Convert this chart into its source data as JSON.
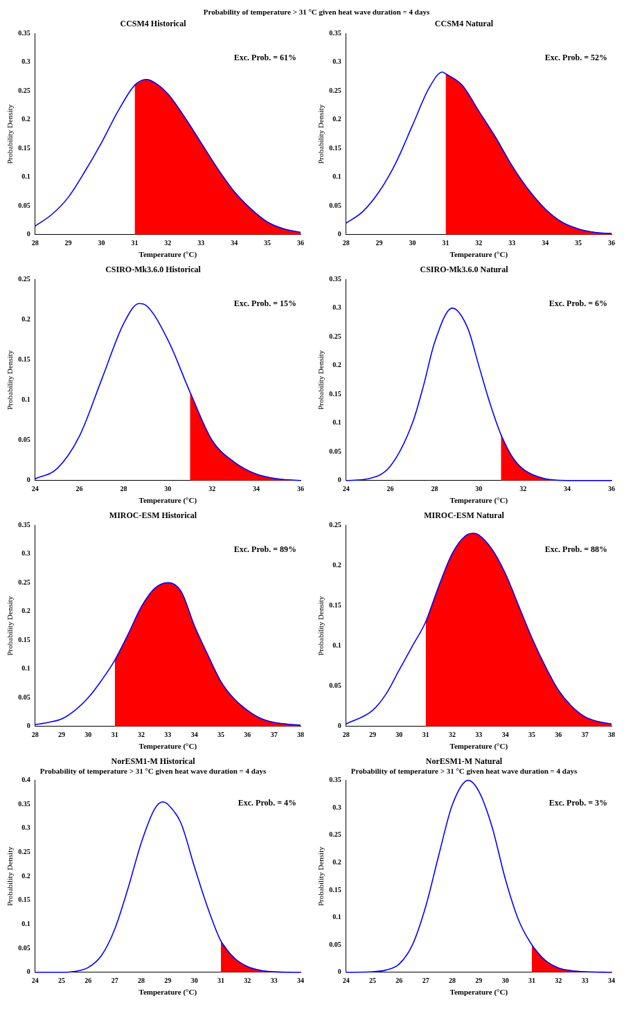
{
  "chart_data": [
    {
      "type": "line",
      "title": "CCSM4 Historical",
      "xlabel": "Temperature (°C)",
      "ylabel": "Probability Density",
      "xlim": [
        28,
        36
      ],
      "xticks": [
        28,
        29,
        30,
        31,
        32,
        33,
        34,
        35,
        36
      ],
      "ylim": [
        0,
        0.35
      ],
      "yticks": [
        0,
        0.05,
        0.1,
        0.15,
        0.2,
        0.25,
        0.3,
        0.35
      ],
      "annotations": [
        "Exc. Prob. = 61%",
        "Probability of temperature > 31 °C given heat wave duration = 4 days"
      ],
      "series": [
        {
          "type": "area",
          "color": "#ff0000",
          "x": [
            31,
            31.35,
            31.5,
            32,
            32.5,
            33,
            33.5,
            34,
            34.5,
            35,
            35.5,
            36
          ],
          "values": [
            0.26,
            0.27,
            0.268,
            0.245,
            0.205,
            0.16,
            0.115,
            0.075,
            0.045,
            0.022,
            0.01,
            0.004
          ]
        },
        {
          "type": "line",
          "color": "#0000ff",
          "x": [
            28,
            28.5,
            29,
            29.5,
            30,
            30.5,
            31,
            31.35,
            31.5,
            32,
            32.5,
            33,
            33.5,
            34,
            34.5,
            35,
            35.5,
            36
          ],
          "values": [
            0.015,
            0.035,
            0.065,
            0.11,
            0.16,
            0.215,
            0.26,
            0.27,
            0.268,
            0.245,
            0.205,
            0.16,
            0.115,
            0.075,
            0.045,
            0.022,
            0.01,
            0.004
          ]
        }
      ]
    },
    {
      "type": "line",
      "title": "CCSM4 Natural",
      "xlabel": "Temperature (°C)",
      "ylabel": "Probability Density",
      "xlim": [
        28,
        36
      ],
      "xticks": [
        28,
        29,
        30,
        31,
        32,
        33,
        34,
        35,
        36
      ],
      "ylim": [
        0,
        0.35
      ],
      "yticks": [
        0,
        0.05,
        0.1,
        0.15,
        0.2,
        0.25,
        0.3,
        0.35
      ],
      "annotations": [
        "Exc. Prob. = 52%"
      ],
      "series": [
        {
          "type": "area",
          "color": "#ff0000",
          "x": [
            31,
            31.5,
            32,
            32.5,
            33,
            33.5,
            34,
            34.5,
            35,
            35.5,
            36
          ],
          "values": [
            0.28,
            0.26,
            0.215,
            0.17,
            0.12,
            0.078,
            0.045,
            0.022,
            0.01,
            0.004,
            0.002
          ]
        },
        {
          "type": "line",
          "color": "#0000ff",
          "x": [
            28,
            28.5,
            29,
            29.5,
            30,
            30.5,
            30.9,
            31,
            31.5,
            32,
            32.5,
            33,
            33.5,
            34,
            34.5,
            35,
            35.5,
            36
          ],
          "values": [
            0.02,
            0.04,
            0.075,
            0.125,
            0.19,
            0.255,
            0.283,
            0.28,
            0.26,
            0.215,
            0.17,
            0.12,
            0.078,
            0.045,
            0.022,
            0.01,
            0.004,
            0.002
          ]
        }
      ]
    },
    {
      "type": "line",
      "title": "CSIRO-Mk3.6.0 Historical",
      "xlabel": "Temperature (°C)",
      "ylabel": "Probability Density",
      "xlim": [
        24,
        36
      ],
      "xticks": [
        24,
        26,
        28,
        30,
        32,
        34,
        36
      ],
      "ylim": [
        0,
        0.25
      ],
      "yticks": [
        0,
        0.05,
        0.1,
        0.15,
        0.2,
        0.25
      ],
      "annotations": [
        "Exc. Prob. = 15%"
      ],
      "series": [
        {
          "type": "area",
          "color": "#ff0000",
          "x": [
            31,
            32,
            33,
            34,
            35,
            36
          ],
          "values": [
            0.11,
            0.05,
            0.023,
            0.008,
            0.002,
            0
          ]
        },
        {
          "type": "line",
          "color": "#0000ff",
          "x": [
            24,
            25,
            26,
            27,
            28,
            28.7,
            29,
            30,
            31,
            32,
            33,
            34,
            35,
            36
          ],
          "values": [
            0.002,
            0.015,
            0.055,
            0.125,
            0.195,
            0.22,
            0.218,
            0.175,
            0.11,
            0.05,
            0.023,
            0.008,
            0.002,
            0
          ]
        }
      ]
    },
    {
      "type": "line",
      "title": "CSIRO-Mk3.6.0 Natural",
      "xlabel": "Temperature (°C)",
      "ylabel": "Probability Density",
      "xlim": [
        24,
        36
      ],
      "xticks": [
        24,
        26,
        28,
        30,
        32,
        34,
        36
      ],
      "ylim": [
        0,
        0.35
      ],
      "yticks": [
        0,
        0.05,
        0.1,
        0.15,
        0.2,
        0.25,
        0.3,
        0.35
      ],
      "annotations": [
        "Exc. Prob. = 6%"
      ],
      "series": [
        {
          "type": "area",
          "color": "#ff0000",
          "x": [
            31,
            31.5,
            32,
            33,
            34,
            36
          ],
          "values": [
            0.08,
            0.042,
            0.02,
            0.003,
            0,
            0
          ]
        },
        {
          "type": "line",
          "color": "#0000ff",
          "x": [
            24,
            25,
            26,
            27,
            27.5,
            28,
            28.8,
            29.5,
            30,
            30.5,
            31,
            31.5,
            32,
            33,
            34,
            36
          ],
          "values": [
            0,
            0.003,
            0.025,
            0.1,
            0.165,
            0.24,
            0.3,
            0.265,
            0.2,
            0.135,
            0.08,
            0.042,
            0.02,
            0.003,
            0,
            0
          ]
        }
      ]
    },
    {
      "type": "line",
      "title": "MIROC-ESM Historical",
      "xlabel": "Temperature (°C)",
      "ylabel": "Probability Density",
      "xlim": [
        28,
        38
      ],
      "xticks": [
        28,
        29,
        30,
        31,
        32,
        33,
        34,
        35,
        36,
        37,
        38
      ],
      "ylim": [
        0,
        0.35
      ],
      "yticks": [
        0,
        0.05,
        0.1,
        0.15,
        0.2,
        0.25,
        0.3,
        0.35
      ],
      "annotations": [
        "Exc. Prob. = 89%"
      ],
      "series": [
        {
          "type": "area",
          "color": "#ff0000",
          "x": [
            31,
            31.5,
            32,
            32.5,
            33,
            33.5,
            34,
            34.5,
            35,
            35.5,
            36,
            36.5,
            37,
            37.5,
            38
          ],
          "values": [
            0.115,
            0.16,
            0.208,
            0.24,
            0.25,
            0.235,
            0.175,
            0.125,
            0.078,
            0.048,
            0.028,
            0.014,
            0.007,
            0.004,
            0.002
          ]
        },
        {
          "type": "line",
          "color": "#0000ff",
          "x": [
            28,
            28.5,
            29,
            29.5,
            30,
            30.5,
            31,
            31.5,
            32,
            32.5,
            33,
            33.5,
            34,
            34.5,
            35,
            35.5,
            36,
            36.5,
            37,
            37.5,
            38
          ],
          "values": [
            0.003,
            0.007,
            0.013,
            0.028,
            0.05,
            0.08,
            0.115,
            0.16,
            0.208,
            0.24,
            0.25,
            0.235,
            0.175,
            0.125,
            0.078,
            0.048,
            0.028,
            0.014,
            0.007,
            0.004,
            0.002
          ]
        }
      ]
    },
    {
      "type": "line",
      "title": "MIROC-ESM Natural",
      "xlabel": "Temperature (°C)",
      "ylabel": "Probability Density",
      "xlim": [
        28,
        38
      ],
      "xticks": [
        28,
        29,
        30,
        31,
        32,
        33,
        34,
        35,
        36,
        37,
        38
      ],
      "ylim": [
        0,
        0.25
      ],
      "yticks": [
        0,
        0.05,
        0.1,
        0.15,
        0.2,
        0.25
      ],
      "annotations": [
        "Exc. Prob. = 88%"
      ],
      "series": [
        {
          "type": "area",
          "color": "#ff0000",
          "x": [
            31,
            31.5,
            32,
            32.5,
            32.8,
            33,
            33.5,
            34,
            34.5,
            35,
            35.5,
            36,
            36.5,
            37,
            37.5,
            38
          ],
          "values": [
            0.13,
            0.175,
            0.215,
            0.237,
            0.24,
            0.238,
            0.22,
            0.19,
            0.15,
            0.11,
            0.075,
            0.045,
            0.025,
            0.012,
            0.006,
            0.003
          ]
        },
        {
          "type": "line",
          "color": "#0000ff",
          "x": [
            28,
            29,
            29.5,
            30,
            30.5,
            31,
            31.5,
            32,
            32.5,
            32.8,
            33,
            33.5,
            34,
            34.5,
            35,
            35.5,
            36,
            36.5,
            37,
            37.5,
            38
          ],
          "values": [
            0.003,
            0.02,
            0.04,
            0.07,
            0.1,
            0.13,
            0.175,
            0.215,
            0.237,
            0.24,
            0.238,
            0.22,
            0.19,
            0.15,
            0.11,
            0.075,
            0.045,
            0.025,
            0.012,
            0.006,
            0.003
          ]
        }
      ]
    },
    {
      "type": "line",
      "title": "NorESM1-M Historical",
      "subtitle": "Probability of temperature > 31 °C given heat wave duration = 4 days",
      "xlabel": "Temperature (°C)",
      "ylabel": "Probability Density",
      "xlim": [
        24,
        34
      ],
      "xticks": [
        24,
        25,
        26,
        27,
        28,
        29,
        30,
        31,
        32,
        33,
        34
      ],
      "ylim": [
        0,
        0.4
      ],
      "yticks": [
        0,
        0.05,
        0.1,
        0.15,
        0.2,
        0.25,
        0.3,
        0.35,
        0.4
      ],
      "annotations": [
        "Exc. Prob. = 4%"
      ],
      "series": [
        {
          "type": "area",
          "color": "#ff0000",
          "x": [
            31,
            31.5,
            32,
            32.5,
            33,
            34
          ],
          "values": [
            0.065,
            0.03,
            0.012,
            0.004,
            0.001,
            0
          ]
        },
        {
          "type": "line",
          "color": "#0000ff",
          "x": [
            24,
            25,
            25.5,
            26,
            26.5,
            27,
            27.5,
            28,
            28.5,
            28.8,
            29,
            29.5,
            30,
            30.5,
            31,
            31.5,
            32,
            32.5,
            33,
            34
          ],
          "values": [
            0,
            0,
            0.002,
            0.01,
            0.035,
            0.09,
            0.175,
            0.27,
            0.34,
            0.355,
            0.35,
            0.31,
            0.22,
            0.135,
            0.065,
            0.03,
            0.012,
            0.004,
            0.001,
            0
          ]
        }
      ]
    },
    {
      "type": "line",
      "title": "NorESM1-M Natural",
      "subtitle": "Probability of temperature > 31 °C given heat wave duration = 4 days",
      "xlabel": "Temperature (°C)",
      "ylabel": "Probability Density",
      "xlim": [
        24,
        34
      ],
      "xticks": [
        24,
        25,
        26,
        27,
        28,
        29,
        30,
        31,
        32,
        33,
        34
      ],
      "ylim": [
        0,
        0.35
      ],
      "yticks": [
        0,
        0.05,
        0.1,
        0.15,
        0.2,
        0.25,
        0.3,
        0.35
      ],
      "annotations": [
        "Exc. Prob. = 3%"
      ],
      "series": [
        {
          "type": "area",
          "color": "#ff0000",
          "x": [
            31,
            31.5,
            32,
            32.5,
            33,
            34
          ],
          "values": [
            0.05,
            0.022,
            0.008,
            0.003,
            0.001,
            0
          ]
        },
        {
          "type": "line",
          "color": "#0000ff",
          "x": [
            24,
            25,
            25.5,
            26,
            26.5,
            27,
            27.5,
            28,
            28.6,
            29,
            29.5,
            30,
            30.5,
            31,
            31.5,
            32,
            32.5,
            33,
            34
          ],
          "values": [
            0,
            0.001,
            0.004,
            0.015,
            0.05,
            0.12,
            0.215,
            0.305,
            0.35,
            0.33,
            0.265,
            0.17,
            0.095,
            0.05,
            0.022,
            0.008,
            0.003,
            0.001,
            0
          ]
        }
      ]
    }
  ]
}
